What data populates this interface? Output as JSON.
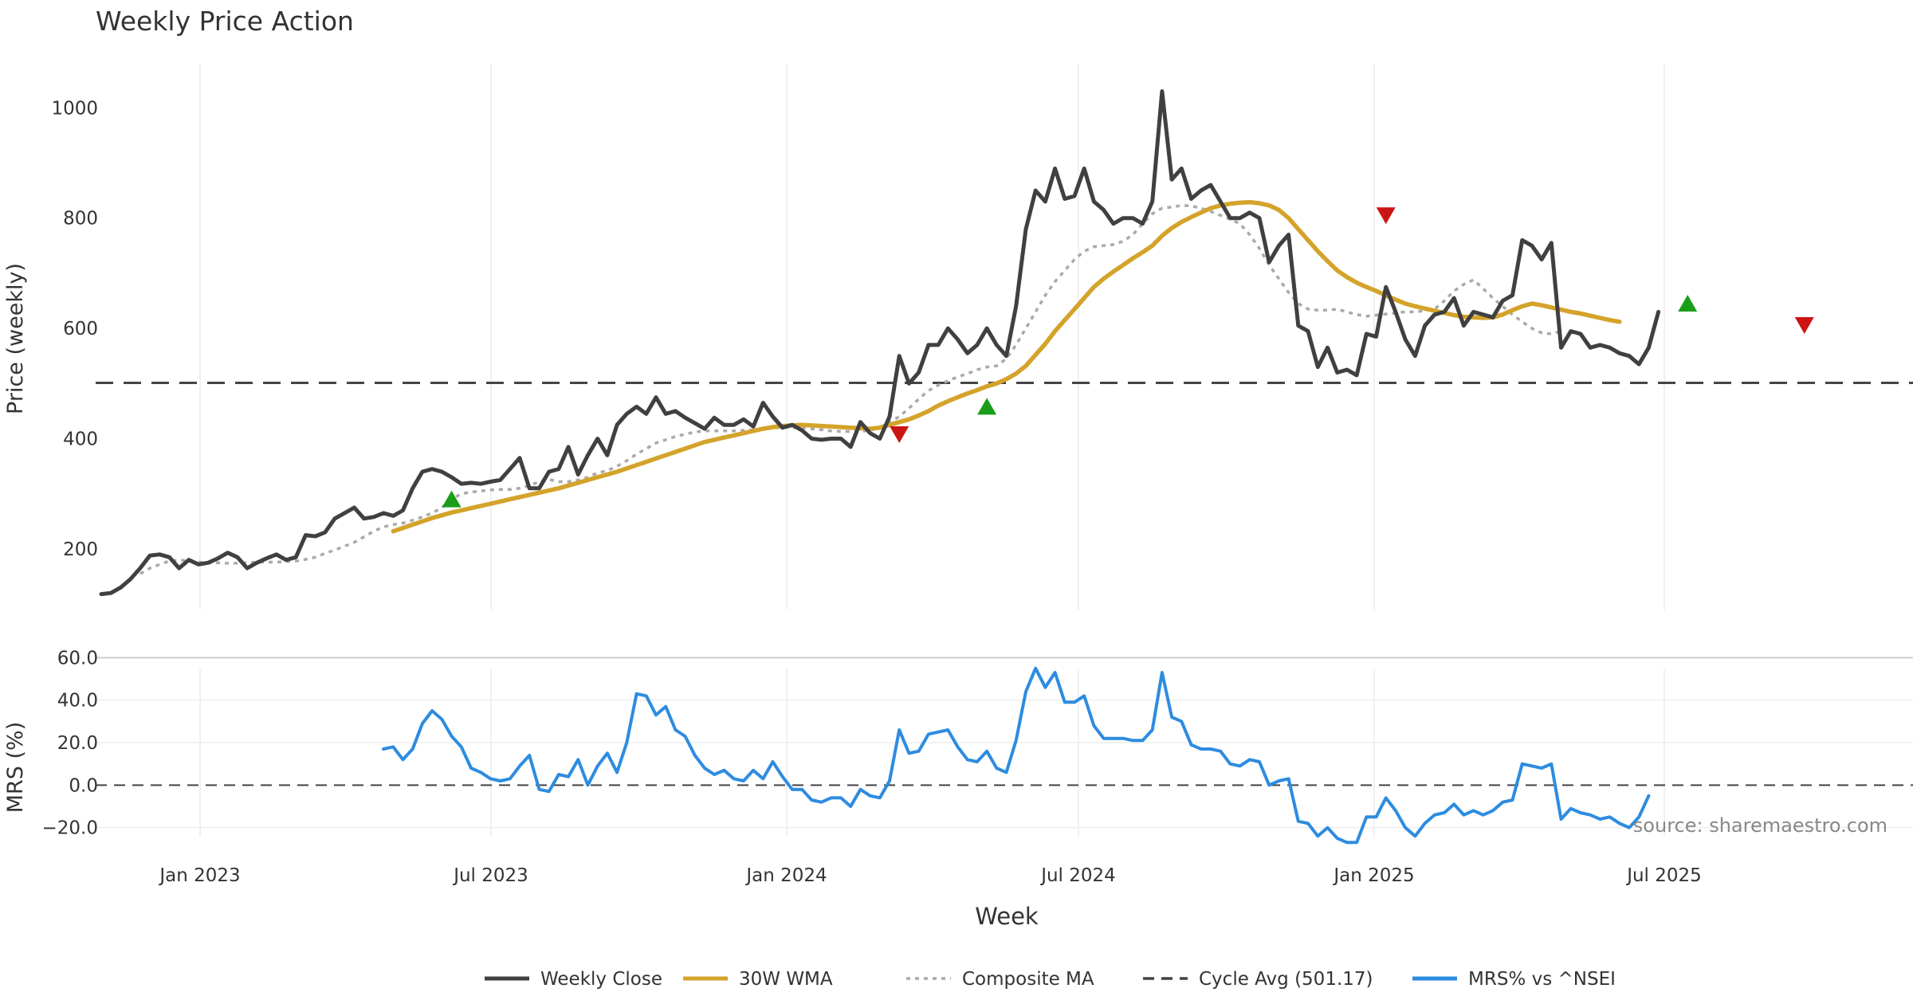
{
  "chart_data": {
    "type": "line",
    "title": "Weekly Price Action",
    "xlabel": "Week",
    "x_tick_labels": [
      "Jan 2023",
      "Jul 2023",
      "Jan 2024",
      "Jul 2024",
      "Jan 2025",
      "Jul 2025"
    ],
    "source_text": "source: sharemaestro.com",
    "cycle_avg": 501.17,
    "price_panel": {
      "ylabel": "Price (weekly)",
      "ylim": [
        90,
        1080
      ],
      "yticks": [
        200,
        400,
        600,
        800,
        1000
      ],
      "week_index_start": 0,
      "series": [
        {
          "name": "Weekly Close",
          "color": "#404040",
          "start_index": 0,
          "values": [
            118,
            120,
            130,
            145,
            165,
            188,
            190,
            185,
            165,
            180,
            172,
            175,
            183,
            193,
            185,
            165,
            175,
            183,
            190,
            180,
            185,
            225,
            223,
            230,
            255,
            265,
            275,
            255,
            258,
            265,
            260,
            270,
            310,
            340,
            345,
            340,
            330,
            318,
            320,
            318,
            322,
            325,
            345,
            365,
            310,
            310,
            340,
            345,
            385,
            335,
            370,
            400,
            370,
            425,
            445,
            458,
            445,
            475,
            445,
            450,
            438,
            428,
            418,
            438,
            425,
            425,
            435,
            422,
            465,
            440,
            420,
            425,
            415,
            400,
            398,
            400,
            400,
            385,
            430,
            410,
            400,
            440,
            550,
            500,
            520,
            570,
            570,
            600,
            580,
            555,
            570,
            600,
            570,
            550,
            640,
            780,
            850,
            830,
            890,
            835,
            840,
            890,
            830,
            815,
            790,
            800,
            800,
            790,
            830,
            1030,
            870,
            890,
            835,
            850,
            860,
            830,
            800,
            800,
            810,
            800,
            720,
            750,
            770,
            605,
            595,
            530,
            565,
            520,
            525,
            515,
            590,
            585,
            675,
            630,
            580,
            550,
            605,
            625,
            630,
            655,
            605,
            630,
            625,
            620,
            650,
            660,
            760,
            750,
            725,
            755,
            565,
            595,
            590,
            565,
            570,
            565,
            555,
            550,
            535,
            565,
            630
          ]
        },
        {
          "name": "30W WMA",
          "color": "#d4a32a",
          "start_index": 30,
          "values": [
            232,
            238,
            244,
            250,
            256,
            261,
            266,
            270,
            274,
            278,
            282,
            286,
            290,
            294,
            298,
            302,
            306,
            310,
            315,
            320,
            325,
            330,
            335,
            340,
            346,
            352,
            358,
            364,
            370,
            376,
            382,
            388,
            394,
            398,
            402,
            406,
            410,
            414,
            418,
            421,
            423,
            424,
            425,
            424,
            423,
            422,
            421,
            420,
            419,
            418,
            420,
            425,
            430,
            435,
            442,
            450,
            460,
            468,
            475,
            482,
            488,
            495,
            500,
            508,
            518,
            532,
            552,
            572,
            595,
            615,
            635,
            655,
            675,
            690,
            703,
            715,
            727,
            738,
            750,
            768,
            782,
            793,
            802,
            810,
            818,
            823,
            826,
            828,
            829,
            827,
            823,
            815,
            800,
            780,
            760,
            740,
            722,
            705,
            693,
            683,
            675,
            668,
            660,
            652,
            645,
            640,
            636,
            632,
            628,
            624,
            621,
            620,
            619,
            620,
            625,
            633,
            640,
            645,
            642,
            638,
            634,
            630,
            627,
            623,
            619,
            615,
            612
          ]
        },
        {
          "name": "Composite MA",
          "color": "#aaaaaa",
          "start_index": 4,
          "values": [
            155,
            165,
            172,
            178,
            180,
            178,
            176,
            175,
            175,
            174,
            174,
            175,
            176,
            176,
            176,
            177,
            178,
            181,
            185,
            192,
            198,
            205,
            212,
            222,
            232,
            240,
            244,
            247,
            252,
            258,
            265,
            275,
            290,
            300,
            303,
            305,
            307,
            308,
            308,
            310,
            315,
            322,
            326,
            322,
            322,
            325,
            330,
            338,
            342,
            350,
            360,
            372,
            382,
            392,
            398,
            404,
            408,
            412,
            414,
            414,
            414,
            414,
            415,
            416,
            417,
            419,
            421,
            420,
            420,
            418,
            416,
            414,
            413,
            413,
            413,
            415,
            420,
            430,
            440,
            455,
            472,
            487,
            497,
            505,
            512,
            518,
            525,
            530,
            532,
            545,
            570,
            600,
            630,
            660,
            685,
            705,
            725,
            740,
            748,
            750,
            752,
            758,
            770,
            790,
            808,
            818,
            820,
            823,
            822,
            818,
            812,
            805,
            798,
            790,
            770,
            745,
            715,
            690,
            665,
            645,
            635,
            633,
            633,
            635,
            630,
            625,
            622,
            624,
            626,
            628,
            630,
            630,
            632,
            635,
            650,
            668,
            680,
            688,
            672,
            655,
            640,
            625,
            612,
            600,
            592,
            590,
            595
          ]
        }
      ],
      "buy_signals": [
        {
          "week": 36,
          "value": 290
        },
        {
          "week": 91,
          "value": 458
        },
        {
          "week": 163,
          "value": 645
        }
      ],
      "sell_signals": [
        {
          "week": 82,
          "value": 408
        },
        {
          "week": 132,
          "value": 805
        },
        {
          "week": 175,
          "value": 606
        }
      ]
    },
    "mrs_panel": {
      "ylabel": "MRS (%)",
      "ylim": [
        -28,
        62
      ],
      "yticks": [
        -20,
        0,
        20,
        40,
        60
      ],
      "ytick_labels": [
        "−20.0",
        "0.0",
        "20.0",
        "40.0",
        "60.0"
      ],
      "series": [
        {
          "name": "MRS% vs ^NSEI",
          "color": "#2d8ce0",
          "start_index": 29,
          "values": [
            17,
            18,
            12,
            17,
            29,
            35,
            31,
            23,
            18,
            8,
            6,
            3,
            2,
            3,
            9,
            14,
            -2,
            -3,
            5,
            4,
            12,
            0,
            9,
            15,
            6,
            20,
            43,
            42,
            33,
            37,
            26,
            23,
            14,
            8,
            5,
            7,
            3,
            2,
            7,
            3,
            11,
            4,
            -2,
            -2,
            -7,
            -8,
            -6,
            -6,
            -10,
            -2,
            -5,
            -6,
            2,
            26,
            15,
            16,
            24,
            25,
            26,
            18,
            12,
            11,
            16,
            8,
            6,
            21,
            44,
            55,
            46,
            53,
            39,
            39,
            42,
            28,
            22,
            22,
            22,
            21,
            21,
            26,
            53,
            32,
            30,
            19,
            17,
            17,
            16,
            10,
            9,
            12,
            11,
            0,
            2,
            3,
            -17,
            -18,
            -24,
            -20,
            -25,
            -27,
            -27,
            -15,
            -15,
            -6,
            -12,
            -20,
            -24,
            -18,
            -14,
            -13,
            -9,
            -14,
            -12,
            -14,
            -12,
            -8,
            -7,
            10,
            9,
            8,
            10,
            -16,
            -11,
            -13,
            -14,
            -16,
            -15,
            -18,
            -20,
            -15,
            -5
          ]
        }
      ]
    },
    "legend": {
      "position": "bottom-center",
      "entries": [
        {
          "label": "Weekly Close",
          "color": "#404040",
          "style": "solid"
        },
        {
          "label": "30W WMA",
          "color": "#d4a32a",
          "style": "solid"
        },
        {
          "label": "Composite MA",
          "color": "#aaaaaa",
          "style": "dotted"
        },
        {
          "label": "Cycle Avg (501.17)",
          "color": "#444444",
          "style": "dashed"
        },
        {
          "label": "MRS% vs ^NSEI",
          "color": "#2d8ce0",
          "style": "solid"
        }
      ]
    }
  }
}
